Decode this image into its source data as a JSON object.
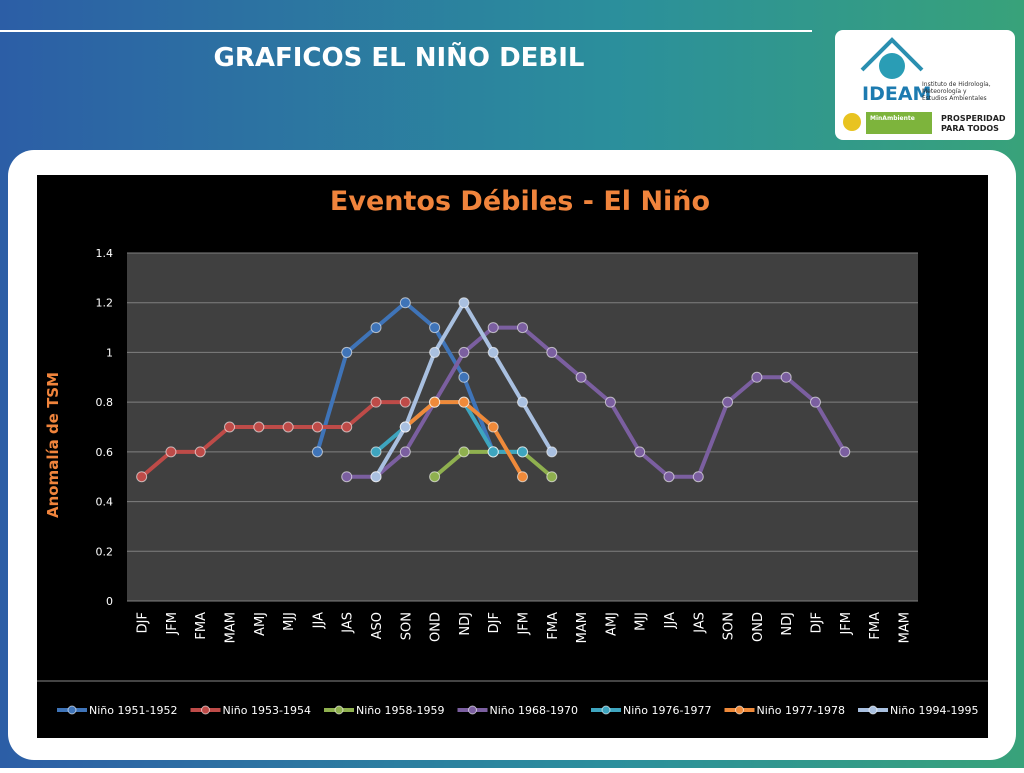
{
  "slide": {
    "title": "GRAFICOS EL NIÑO DEBIL",
    "logo_name": "IDEAM",
    "logo_subtitle": [
      "Instituto de Hidrología,",
      "Meteorología y",
      "Estudios Ambientales"
    ],
    "ministry": "MinAmbiente",
    "slogan": [
      "PROSPERIDAD",
      "PARA TODOS"
    ]
  },
  "chart_data": {
    "type": "line",
    "title": "Eventos Débiles -  El Niño",
    "y_label": "Anomalía de TSM",
    "categories": [
      "DJF",
      "JFM",
      "FMA",
      "MAM",
      "AMJ",
      "MJJ",
      "JJA",
      "JAS",
      "ASO",
      "SON",
      "OND",
      "NDJ",
      "DJF",
      "JFM",
      "FMA",
      "MAM",
      "AMJ",
      "MJJ",
      "JJA",
      "JAS",
      "SON",
      "OND",
      "NDJ",
      "DJF",
      "JFM",
      "FMA",
      "MAM"
    ],
    "ylim": [
      0,
      1.4
    ],
    "yticks": [
      0,
      0.2,
      0.4,
      0.6,
      0.8,
      1,
      1.2,
      1.4
    ],
    "grid": true,
    "legend": "bottom",
    "series": [
      {
        "name": "Niño 1951-1952",
        "color": "#3f74b8",
        "values": [
          null,
          null,
          null,
          null,
          null,
          null,
          0.6,
          1.0,
          1.1,
          1.2,
          1.1,
          0.9,
          0.6,
          null,
          null,
          null,
          null,
          null,
          null,
          null,
          null,
          null,
          null,
          null,
          null,
          null,
          null
        ]
      },
      {
        "name": "Niño 1953-1954",
        "color": "#be4b48",
        "values": [
          0.5,
          0.6,
          0.6,
          0.7,
          0.7,
          0.7,
          0.7,
          0.7,
          0.8,
          0.8,
          null,
          null,
          null,
          null,
          null,
          null,
          null,
          null,
          null,
          null,
          null,
          null,
          null,
          null,
          null,
          null,
          null
        ]
      },
      {
        "name": "Niño 1958-1959",
        "color": "#8fb04f",
        "values": [
          null,
          null,
          null,
          null,
          null,
          null,
          null,
          null,
          null,
          null,
          0.5,
          0.6,
          0.6,
          0.6,
          0.5,
          null,
          null,
          null,
          null,
          null,
          null,
          null,
          null,
          null,
          null,
          null,
          null
        ]
      },
      {
        "name": "Niño 1968-1970",
        "color": "#7b5fa0",
        "values": [
          null,
          null,
          null,
          null,
          null,
          null,
          null,
          0.5,
          0.5,
          0.6,
          0.8,
          1.0,
          1.1,
          1.1,
          1.0,
          0.9,
          0.8,
          0.6,
          0.5,
          0.5,
          0.8,
          0.9,
          0.9,
          0.8,
          0.6,
          null,
          null
        ]
      },
      {
        "name": "Niño 1976-1977",
        "color": "#3ea5bf",
        "values": [
          null,
          null,
          null,
          null,
          null,
          null,
          null,
          null,
          0.6,
          0.7,
          0.8,
          0.8,
          0.6,
          0.6,
          null,
          null,
          null,
          null,
          null,
          null,
          null,
          null,
          null,
          null,
          null,
          null,
          null
        ]
      },
      {
        "name": "Niño 1977-1978",
        "color": "#ef8a3a",
        "values": [
          null,
          null,
          null,
          null,
          null,
          null,
          null,
          null,
          null,
          0.7,
          0.8,
          0.8,
          0.7,
          0.5,
          null,
          null,
          null,
          null,
          null,
          null,
          null,
          null,
          null,
          null,
          null,
          null,
          null
        ]
      },
      {
        "name": "Niño 1994-1995",
        "color": "#a9c0e0",
        "values": [
          null,
          null,
          null,
          null,
          null,
          null,
          null,
          null,
          0.5,
          0.7,
          1.0,
          1.2,
          1.0,
          0.8,
          0.6,
          null,
          null,
          null,
          null,
          null,
          null,
          null,
          null,
          null,
          null,
          null,
          null
        ]
      }
    ]
  }
}
